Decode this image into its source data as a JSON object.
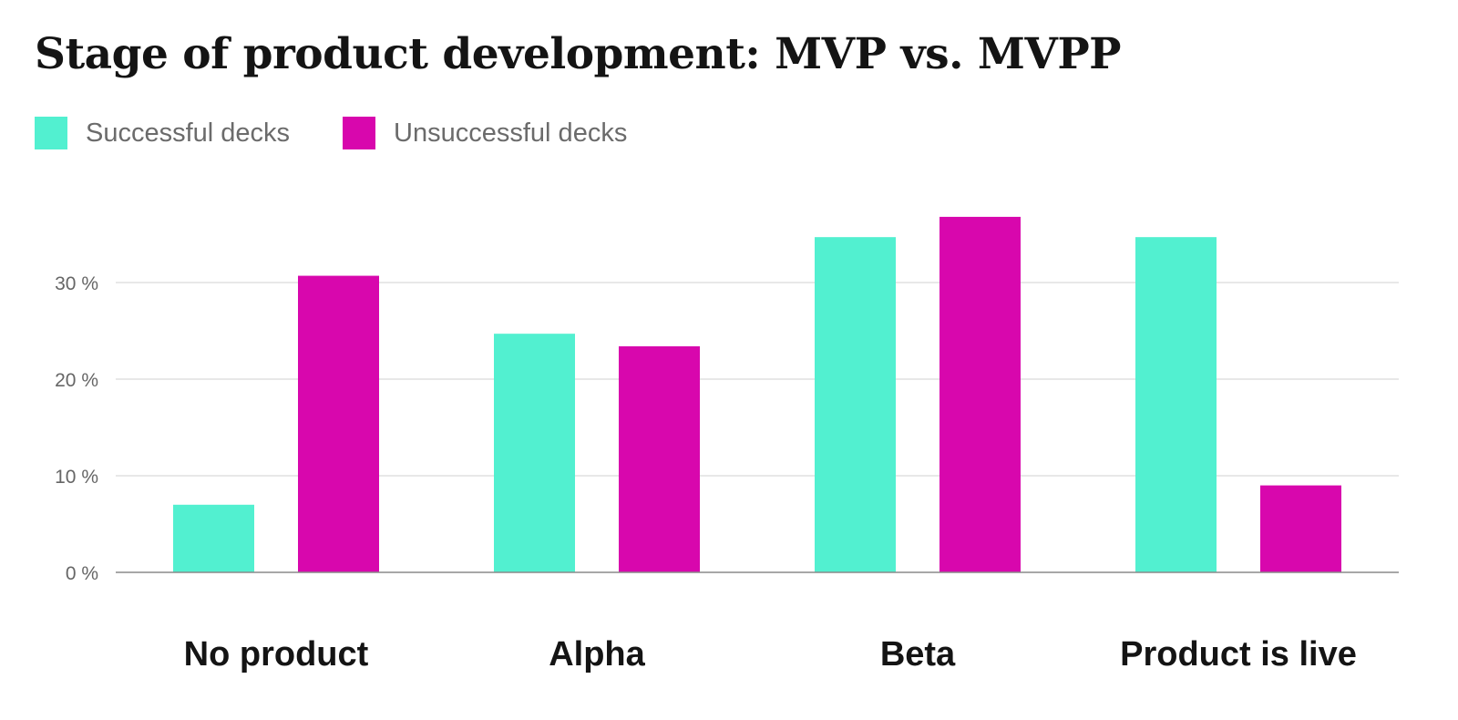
{
  "chart_data": {
    "type": "bar",
    "title": "Stage of product development: MVP vs. MVPP",
    "xlabel": "",
    "ylabel": "",
    "categories": [
      "No product",
      "Alpha",
      "Beta",
      "Product is live"
    ],
    "series": [
      {
        "name": "Successful decks",
        "color": "#52f0d0",
        "values": [
          7,
          24.7,
          34.7,
          34.7
        ]
      },
      {
        "name": "Unsuccessful decks",
        "color": "#d807ad",
        "values": [
          30.7,
          23.4,
          36.8,
          9
        ]
      }
    ],
    "ylim": [
      0,
      40
    ],
    "yticks": [
      0,
      10,
      20,
      30
    ],
    "ytick_labels": [
      "0 %",
      "10 %",
      "20 %",
      "30 %"
    ],
    "grid": true,
    "legend_position": "top-left"
  }
}
